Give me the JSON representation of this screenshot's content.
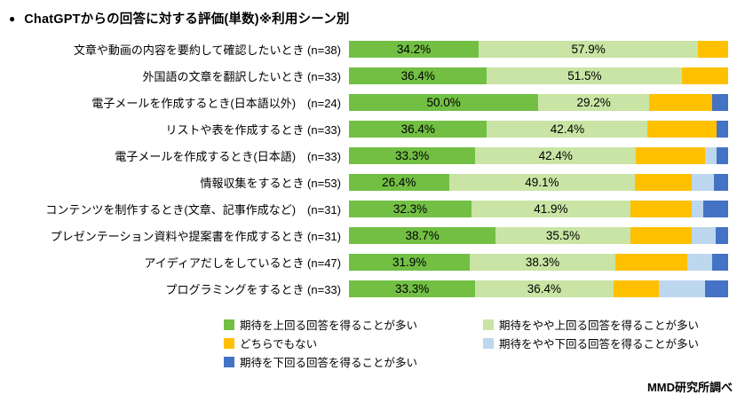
{
  "header": {
    "bullet": "●",
    "title": "ChatGPTからの回答に対する評価(単数)※利用シーン別"
  },
  "footer": {
    "source": "MMD研究所調べ"
  },
  "chart_data": {
    "type": "bar",
    "stacked": true,
    "orientation": "horizontal",
    "xlim": [
      0,
      100
    ],
    "value_unit": "%",
    "grid": false,
    "legend_position": "bottom",
    "label_series_count": 2,
    "categories": [
      "文章や動画の内容を要約して確認したいとき (n=38)",
      "外国語の文章を翻訳したいとき (n=33)",
      "電子メールを作成するとき(日本語以外)　(n=24)",
      "リストや表を作成するとき (n=33)",
      "電子メールを作成するとき(日本語)　(n=33)",
      "情報収集をするとき (n=53)",
      "コンテンツを制作するとき(文章、記事作成など)　(n=31)",
      "プレゼンテーション資料や提案書を作成するとき (n=31)",
      "アイディアだしをしているとき (n=47)",
      "プログラミングをするとき (n=33)"
    ],
    "series": [
      {
        "name": "期待を上回る回答を得ることが多い",
        "color": "#72BF44",
        "values": [
          34.2,
          36.4,
          50.0,
          36.4,
          33.3,
          26.4,
          32.3,
          38.7,
          31.9,
          33.3
        ]
      },
      {
        "name": "期待をやや上回る回答を得ることが多い",
        "color": "#C9E4A4",
        "values": [
          57.9,
          51.5,
          29.2,
          42.4,
          42.4,
          49.1,
          41.9,
          35.5,
          38.3,
          36.4
        ]
      },
      {
        "name": "どちらでもない",
        "color": "#FFC000",
        "values": [
          7.9,
          12.1,
          16.7,
          18.2,
          18.2,
          15.1,
          16.1,
          16.1,
          19.1,
          12.1
        ]
      },
      {
        "name": "期待をやや下回る回答を得ることが多い",
        "color": "#BDD7EE",
        "values": [
          0,
          0,
          0,
          0,
          3.0,
          5.7,
          3.2,
          6.5,
          6.4,
          12.1
        ]
      },
      {
        "name": "期待を下回る回答を得ることが多い",
        "color": "#4472C4",
        "values": [
          0,
          0,
          4.2,
          3.0,
          3.0,
          3.8,
          6.5,
          3.2,
          4.3,
          6.1
        ]
      }
    ]
  }
}
